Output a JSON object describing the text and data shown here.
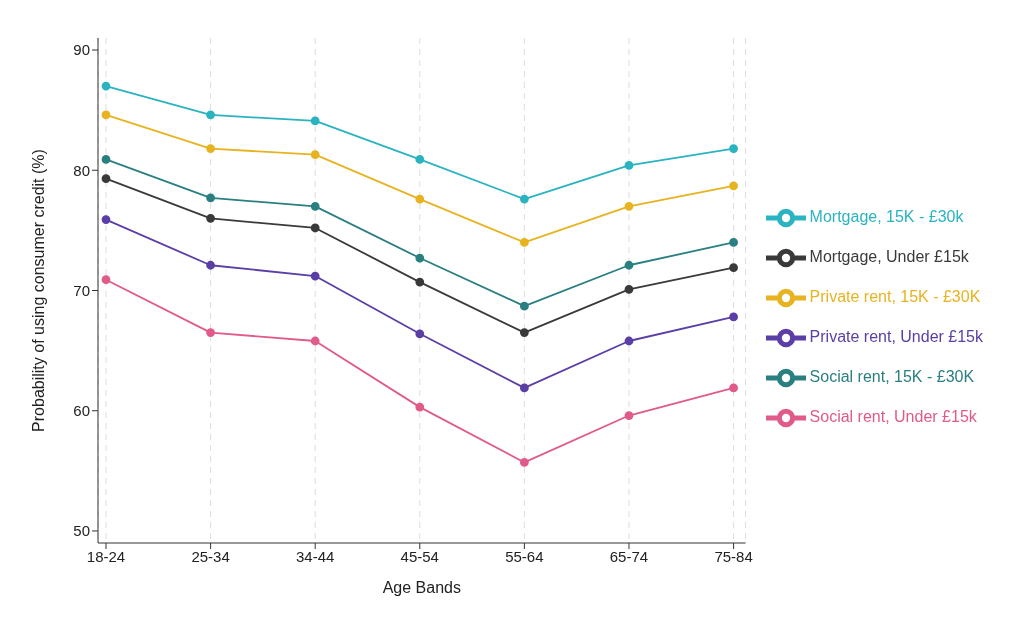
{
  "chart_data": {
    "type": "line",
    "xlabel": "Age Bands",
    "ylabel": "Probability of using consumer credit (%)",
    "categories": [
      "18-24",
      "25-34",
      "34-44",
      "45-54",
      "55-64",
      "65-74",
      "75-84"
    ],
    "series": [
      {
        "name": "Mortgage, 15K - £30k",
        "color": "#2ab3c0",
        "values": [
          87.0,
          84.6,
          84.1,
          80.9,
          77.6,
          80.4,
          81.8
        ]
      },
      {
        "name": "Private rent, 15K - £30K",
        "color": "#e8b320",
        "values": [
          84.6,
          81.8,
          81.3,
          77.6,
          74.0,
          77.0,
          78.7
        ]
      },
      {
        "name": "Social rent, 15K - £30K",
        "color": "#2a7f80",
        "values": [
          80.9,
          77.7,
          77.0,
          72.7,
          68.7,
          72.1,
          74.0
        ]
      },
      {
        "name": "Mortgage, Under £15k",
        "color": "#3a3a3a",
        "values": [
          79.3,
          76.0,
          75.2,
          70.7,
          66.5,
          70.1,
          71.9
        ]
      },
      {
        "name": "Private rent, Under £15k",
        "color": "#5b3ea6",
        "values": [
          75.9,
          72.1,
          71.2,
          66.4,
          61.9,
          65.8,
          67.8
        ]
      },
      {
        "name": "Social rent, Under £15k",
        "color": "#e05a8a",
        "values": [
          70.9,
          66.5,
          65.8,
          60.3,
          55.7,
          59.6,
          61.9
        ]
      }
    ],
    "ylim": [
      49,
      91
    ],
    "yticks": [
      50,
      60,
      70,
      80,
      90
    ],
    "grid": "x",
    "legend": "right",
    "marker": "circle",
    "line_style": "solid"
  }
}
